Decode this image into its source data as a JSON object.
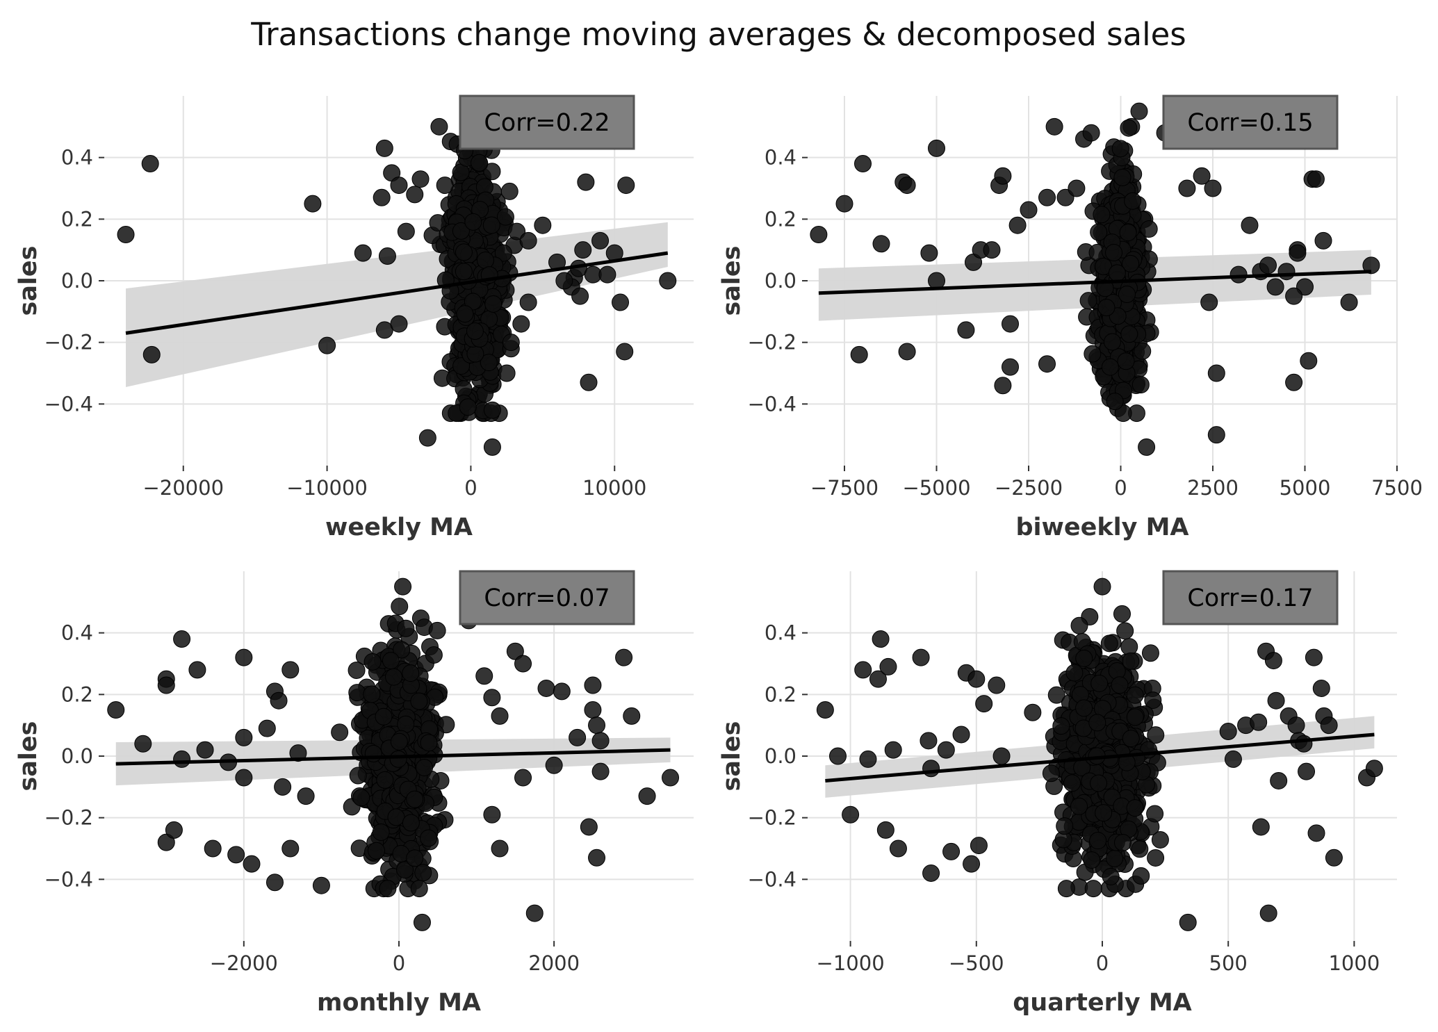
{
  "title": "Transactions change moving averages & decomposed sales",
  "chart_data": [
    {
      "type": "scatter",
      "xlabel": "weekly MA",
      "ylabel": "sales",
      "annotation": "Corr=0.22",
      "xlim": [
        -25500,
        15500
      ],
      "ylim": [
        -0.6,
        0.6
      ],
      "xticks": [
        -20000,
        -10000,
        0,
        10000
      ],
      "xtick_labels": [
        "−20000",
        "−10000",
        "0",
        "10000"
      ],
      "yticks": [
        -0.4,
        -0.2,
        0.0,
        0.2,
        0.4
      ],
      "ytick_labels": [
        "−0.4",
        "−0.2",
        "0.0",
        "0.2",
        "0.4"
      ],
      "grid": true,
      "regression": {
        "x": [
          -24000,
          13700
        ],
        "y": [
          -0.17,
          0.09
        ],
        "ci_lower_ends": [
          -0.345,
          0.045
        ],
        "ci_upper_ends": [
          -0.025,
          0.19
        ]
      },
      "outliers": [
        [
          -24000,
          0.15
        ],
        [
          -22300,
          0.38
        ],
        [
          -22200,
          -0.24
        ],
        [
          -11000,
          0.25
        ],
        [
          -10000,
          -0.21
        ],
        [
          -7500,
          0.09
        ],
        [
          -6200,
          0.27
        ],
        [
          -6000,
          0.43
        ],
        [
          -5500,
          0.35
        ],
        [
          -5800,
          0.08
        ],
        [
          -5000,
          0.31
        ],
        [
          -4500,
          0.16
        ],
        [
          -3900,
          0.28
        ],
        [
          -3500,
          0.33
        ],
        [
          -6000,
          -0.16
        ],
        [
          -5000,
          -0.14
        ],
        [
          -3000,
          -0.51
        ],
        [
          -2200,
          0.5
        ],
        [
          -1800,
          0.31
        ],
        [
          -1000,
          -0.43
        ],
        [
          -200,
          -0.41
        ],
        [
          200,
          0.5
        ],
        [
          700,
          0.55
        ],
        [
          1500,
          -0.54
        ],
        [
          1500,
          -0.42
        ],
        [
          2500,
          -0.3
        ],
        [
          2700,
          0.29
        ],
        [
          3200,
          0.16
        ],
        [
          4000,
          0.13
        ],
        [
          5000,
          0.18
        ],
        [
          4000,
          -0.07
        ],
        [
          6000,
          0.06
        ],
        [
          7200,
          0.01
        ],
        [
          7500,
          0.04
        ],
        [
          7800,
          0.1
        ],
        [
          8000,
          0.32
        ],
        [
          8200,
          -0.33
        ],
        [
          8500,
          0.02
        ],
        [
          9000,
          0.13
        ],
        [
          9500,
          0.02
        ],
        [
          10000,
          0.09
        ],
        [
          10400,
          -0.07
        ],
        [
          10800,
          0.31
        ],
        [
          10700,
          -0.23
        ],
        [
          13700,
          0.0
        ],
        [
          7000,
          -0.02
        ],
        [
          7600,
          -0.05
        ],
        [
          6500,
          0.0
        ],
        [
          3500,
          -0.14
        ],
        [
          2800,
          -0.2
        ]
      ],
      "cluster": {
        "x_center": 400,
        "x_spread": 1600,
        "y_center": 0.0,
        "y_spread": 0.17,
        "y_range": [
          -0.43,
          0.52
        ],
        "count": 650
      }
    },
    {
      "type": "scatter",
      "xlabel": "biweekly MA",
      "ylabel": "sales",
      "annotation": "Corr=0.15",
      "xlim": [
        -8500,
        7500
      ],
      "ylim": [
        -0.6,
        0.6
      ],
      "xticks": [
        -7500,
        -5000,
        -2500,
        0,
        2500,
        5000,
        7500
      ],
      "xtick_labels": [
        "−7500",
        "−5000",
        "−2500",
        "0",
        "2500",
        "5000",
        "7500"
      ],
      "yticks": [
        -0.4,
        -0.2,
        0.0,
        0.2,
        0.4
      ],
      "ytick_labels": [
        "−0.4",
        "−0.2",
        "0.0",
        "0.2",
        "0.4"
      ],
      "grid": true,
      "regression": {
        "x": [
          -8200,
          6800
        ],
        "y": [
          -0.04,
          0.03
        ],
        "ci_lower_ends": [
          -0.13,
          -0.045
        ],
        "ci_upper_ends": [
          0.04,
          0.1
        ]
      },
      "outliers": [
        [
          -8200,
          0.15
        ],
        [
          -7500,
          0.25
        ],
        [
          -7100,
          -0.24
        ],
        [
          -7000,
          0.38
        ],
        [
          -6500,
          0.12
        ],
        [
          -5900,
          0.32
        ],
        [
          -5800,
          0.31
        ],
        [
          -5800,
          -0.23
        ],
        [
          -5000,
          0.43
        ],
        [
          -5000,
          0.0
        ],
        [
          -5200,
          0.09
        ],
        [
          -4200,
          -0.16
        ],
        [
          -4000,
          0.06
        ],
        [
          -3800,
          0.1
        ],
        [
          -3500,
          0.1
        ],
        [
          -3300,
          0.31
        ],
        [
          -3200,
          0.34
        ],
        [
          -3200,
          -0.34
        ],
        [
          -2800,
          0.18
        ],
        [
          -3000,
          -0.14
        ],
        [
          -3000,
          -0.28
        ],
        [
          -2500,
          0.23
        ],
        [
          -2000,
          0.27
        ],
        [
          -2000,
          -0.27
        ],
        [
          -1800,
          0.5
        ],
        [
          -1500,
          0.27
        ],
        [
          -1200,
          0.3
        ],
        [
          -1000,
          0.46
        ],
        [
          -800,
          0.48
        ],
        [
          700,
          -0.54
        ],
        [
          500,
          0.55
        ],
        [
          1200,
          0.48
        ],
        [
          1800,
          0.3
        ],
        [
          2200,
          0.34
        ],
        [
          2500,
          0.3
        ],
        [
          2600,
          -0.5
        ],
        [
          2600,
          -0.3
        ],
        [
          2400,
          -0.07
        ],
        [
          3500,
          0.18
        ],
        [
          3200,
          0.02
        ],
        [
          3800,
          0.03
        ],
        [
          4000,
          0.05
        ],
        [
          4200,
          -0.02
        ],
        [
          4500,
          0.03
        ],
        [
          4700,
          -0.33
        ],
        [
          4800,
          0.1
        ],
        [
          4800,
          0.09
        ],
        [
          5000,
          -0.02
        ],
        [
          5100,
          -0.26
        ],
        [
          5200,
          0.33
        ],
        [
          5300,
          0.33
        ],
        [
          5500,
          0.13
        ],
        [
          6200,
          -0.07
        ],
        [
          6800,
          0.05
        ],
        [
          4700,
          -0.05
        ]
      ],
      "cluster": {
        "x_center": 0,
        "x_spread": 520,
        "y_center": 0.0,
        "y_spread": 0.17,
        "y_range": [
          -0.43,
          0.5
        ],
        "count": 650
      }
    },
    {
      "type": "scatter",
      "xlabel": "monthly MA",
      "ylabel": "sales",
      "annotation": "Corr=0.07",
      "xlim": [
        -3800,
        3800
      ],
      "ylim": [
        -0.6,
        0.6
      ],
      "xticks": [
        -2000,
        0,
        2000
      ],
      "xtick_labels": [
        "−2000",
        "0",
        "2000"
      ],
      "yticks": [
        -0.4,
        -0.2,
        0.0,
        0.2,
        0.4
      ],
      "ytick_labels": [
        "−0.4",
        "−0.2",
        "0.0",
        "0.2",
        "0.4"
      ],
      "grid": true,
      "regression": {
        "x": [
          -3650,
          3500
        ],
        "y": [
          -0.025,
          0.02
        ],
        "ci_lower_ends": [
          -0.095,
          -0.02
        ],
        "ci_upper_ends": [
          0.045,
          0.06
        ]
      },
      "outliers": [
        [
          -3650,
          0.15
        ],
        [
          -3300,
          0.04
        ],
        [
          -3000,
          0.25
        ],
        [
          -3000,
          0.23
        ],
        [
          -3000,
          -0.28
        ],
        [
          -2900,
          -0.24
        ],
        [
          -2800,
          0.38
        ],
        [
          -2800,
          -0.01
        ],
        [
          -2600,
          0.28
        ],
        [
          -2500,
          0.02
        ],
        [
          -2400,
          -0.3
        ],
        [
          -2200,
          -0.02
        ],
        [
          -2100,
          -0.32
        ],
        [
          -2000,
          0.32
        ],
        [
          -2000,
          0.06
        ],
        [
          -2000,
          -0.07
        ],
        [
          -1900,
          -0.35
        ],
        [
          -1700,
          0.09
        ],
        [
          -1600,
          -0.41
        ],
        [
          -1600,
          0.21
        ],
        [
          -1550,
          0.18
        ],
        [
          -1400,
          -0.3
        ],
        [
          -1400,
          0.28
        ],
        [
          -1300,
          0.01
        ],
        [
          -1200,
          -0.13
        ],
        [
          -1000,
          -0.42
        ],
        [
          900,
          0.44
        ],
        [
          1100,
          0.26
        ],
        [
          1200,
          0.19
        ],
        [
          1300,
          0.13
        ],
        [
          1300,
          -0.3
        ],
        [
          1500,
          0.34
        ],
        [
          1600,
          0.3
        ],
        [
          1600,
          -0.07
        ],
        [
          1750,
          -0.51
        ],
        [
          1900,
          0.22
        ],
        [
          2000,
          -0.03
        ],
        [
          2100,
          0.21
        ],
        [
          2300,
          0.06
        ],
        [
          2450,
          -0.23
        ],
        [
          2500,
          0.23
        ],
        [
          2500,
          0.15
        ],
        [
          2550,
          0.1
        ],
        [
          2550,
          -0.33
        ],
        [
          2600,
          0.05
        ],
        [
          2600,
          -0.05
        ],
        [
          2900,
          0.32
        ],
        [
          3000,
          0.13
        ],
        [
          3200,
          -0.13
        ],
        [
          3500,
          -0.07
        ],
        [
          300,
          -0.54
        ],
        [
          50,
          0.55
        ],
        [
          -1500,
          -0.1
        ],
        [
          1200,
          -0.19
        ]
      ],
      "cluster": {
        "x_center": 0,
        "x_spread": 420,
        "y_center": 0.0,
        "y_spread": 0.17,
        "y_range": [
          -0.43,
          0.5
        ],
        "count": 700
      }
    },
    {
      "type": "scatter",
      "xlabel": "quarterly MA",
      "ylabel": "sales",
      "annotation": "Corr=0.17",
      "xlim": [
        -1170,
        1170
      ],
      "ylim": [
        -0.6,
        0.6
      ],
      "xticks": [
        -1000,
        -500,
        0,
        500,
        1000
      ],
      "xtick_labels": [
        "−1000",
        "−500",
        "0",
        "500",
        "1000"
      ],
      "yticks": [
        -0.4,
        -0.2,
        0.0,
        0.2,
        0.4
      ],
      "ytick_labels": [
        "−0.4",
        "−0.2",
        "0.0",
        "0.2",
        "0.4"
      ],
      "grid": true,
      "regression": {
        "x": [
          -1100,
          1080
        ],
        "y": [
          -0.08,
          0.07
        ],
        "ci_lower_ends": [
          -0.135,
          0.025
        ],
        "ci_upper_ends": [
          -0.03,
          0.13
        ]
      },
      "outliers": [
        [
          -1100,
          0.15
        ],
        [
          -1050,
          0.0
        ],
        [
          -1000,
          -0.19
        ],
        [
          -950,
          0.28
        ],
        [
          -930,
          -0.01
        ],
        [
          -890,
          0.25
        ],
        [
          -880,
          0.38
        ],
        [
          -860,
          -0.24
        ],
        [
          -850,
          0.29
        ],
        [
          -830,
          0.02
        ],
        [
          -810,
          -0.3
        ],
        [
          -720,
          0.32
        ],
        [
          -690,
          0.05
        ],
        [
          -680,
          -0.38
        ],
        [
          -680,
          -0.04
        ],
        [
          -620,
          0.02
        ],
        [
          -600,
          -0.31
        ],
        [
          -560,
          0.07
        ],
        [
          -540,
          0.27
        ],
        [
          -520,
          -0.35
        ],
        [
          -500,
          0.25
        ],
        [
          -490,
          -0.29
        ],
        [
          -470,
          0.17
        ],
        [
          -420,
          0.23
        ],
        [
          -400,
          0.0
        ],
        [
          500,
          0.08
        ],
        [
          520,
          -0.01
        ],
        [
          570,
          0.1
        ],
        [
          620,
          0.11
        ],
        [
          630,
          -0.23
        ],
        [
          650,
          0.34
        ],
        [
          660,
          -0.51
        ],
        [
          680,
          0.31
        ],
        [
          690,
          0.18
        ],
        [
          700,
          -0.08
        ],
        [
          740,
          0.13
        ],
        [
          770,
          0.1
        ],
        [
          780,
          0.05
        ],
        [
          800,
          0.04
        ],
        [
          810,
          -0.05
        ],
        [
          840,
          0.32
        ],
        [
          850,
          -0.25
        ],
        [
          870,
          0.22
        ],
        [
          880,
          0.13
        ],
        [
          900,
          0.1
        ],
        [
          920,
          -0.33
        ],
        [
          1050,
          -0.07
        ],
        [
          1080,
          -0.04
        ],
        [
          340,
          -0.54
        ],
        [
          0,
          0.55
        ]
      ],
      "cluster": {
        "x_center": 0,
        "x_spread": 150,
        "y_center": 0.0,
        "y_spread": 0.17,
        "y_range": [
          -0.43,
          0.5
        ],
        "count": 700
      }
    }
  ]
}
